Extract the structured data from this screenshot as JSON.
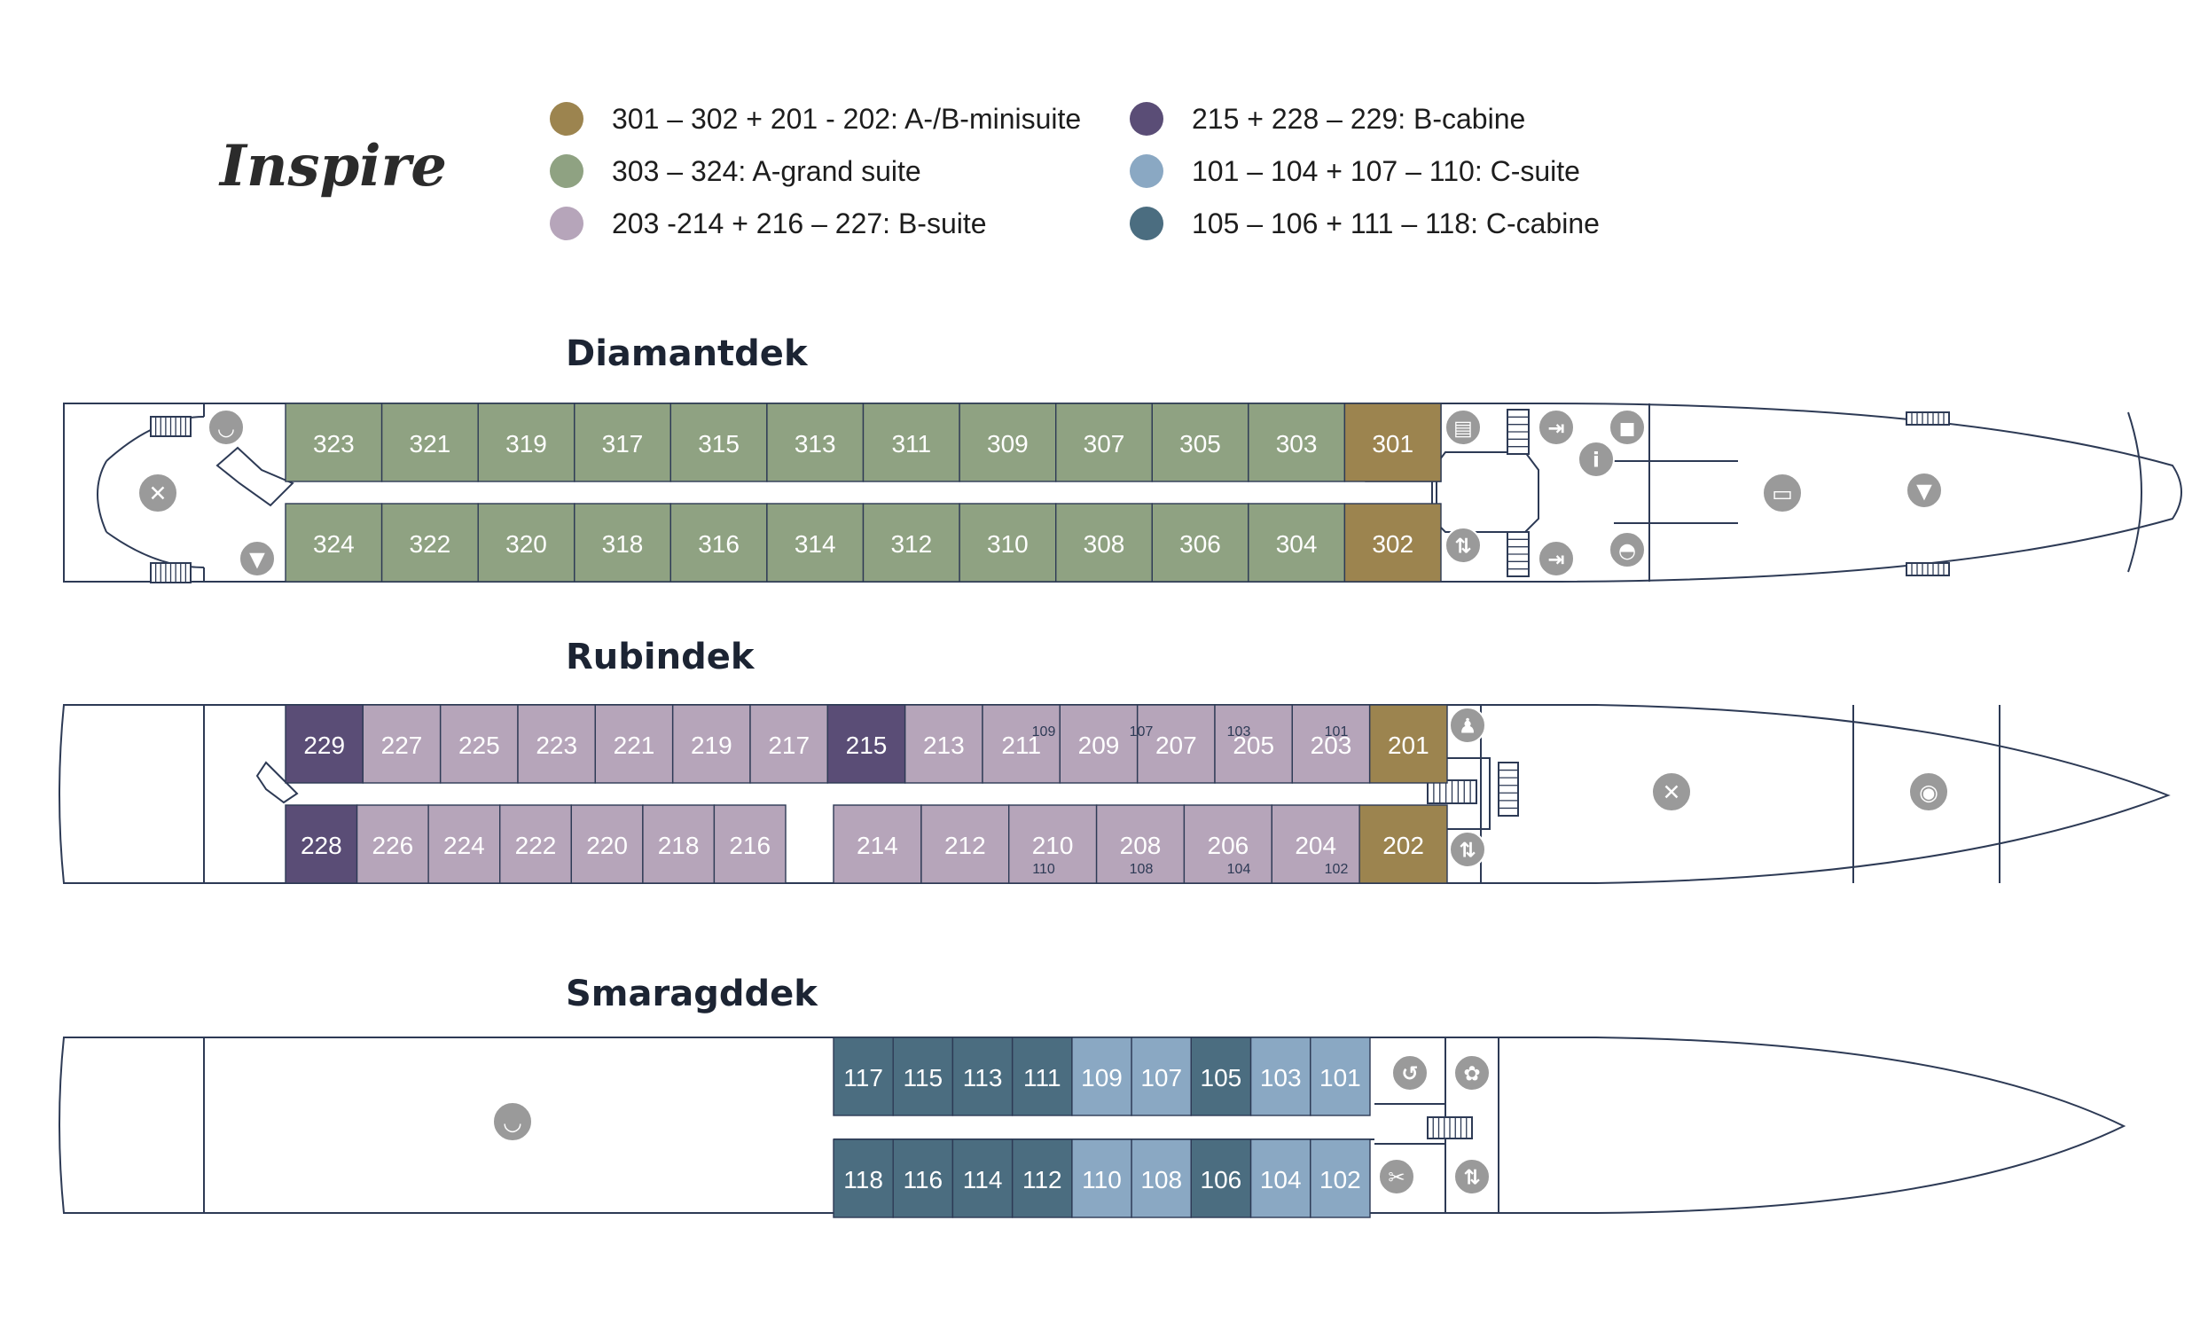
{
  "ship_name": "Inspire",
  "colors": {
    "minisuite": "#9c844f",
    "grand_suite": "#8fa282",
    "b_suite": "#b6a5ba",
    "b_cabine": "#5a4d76",
    "c_suite": "#8aa8c3",
    "c_cabine": "#4b6d80",
    "outline": "#2d3a55",
    "icon": "#9a9a9a"
  },
  "legend": [
    {
      "label": "301 – 302 + 201 - 202: A-/B-minisuite",
      "color": "#9c844f"
    },
    {
      "label": "303 – 324: A-grand suite",
      "color": "#8fa282"
    },
    {
      "label": "203 -214 + 216 – 227: B-suite",
      "color": "#b6a5ba"
    },
    {
      "label": "215 + 228 – 229: B-cabine",
      "color": "#5a4d76"
    },
    {
      "label": "101 – 104 + 107 – 110: C-suite",
      "color": "#8aa8c3"
    },
    {
      "label": "105 – 106 + 111 – 118: C-cabine",
      "color": "#4b6d80"
    }
  ],
  "decks": {
    "diamant": {
      "name": "Diamantdek",
      "top_row": [
        "323",
        "321",
        "319",
        "317",
        "315",
        "313",
        "311",
        "309",
        "307",
        "305",
        "303",
        "301"
      ],
      "bottom_row": [
        "324",
        "322",
        "320",
        "318",
        "316",
        "314",
        "312",
        "310",
        "308",
        "306",
        "304",
        "302"
      ]
    },
    "rubin": {
      "name": "Rubindek",
      "top_row": [
        "229",
        "227",
        "225",
        "223",
        "221",
        "219",
        "217",
        "215",
        "213",
        "211",
        "209",
        "207",
        "205",
        "203",
        "201"
      ],
      "bottom_row": [
        "228",
        "226",
        "224",
        "222",
        "220",
        "218",
        "216",
        "214",
        "212",
        "210",
        "208",
        "206",
        "204",
        "202"
      ],
      "stair_tags_top": [
        "109",
        "107",
        "103",
        "101"
      ],
      "stair_tags_bottom": [
        "110",
        "108",
        "104",
        "102"
      ]
    },
    "smaragd": {
      "name": "Smaragddek",
      "top_row": [
        "117",
        "115",
        "113",
        "111",
        "109",
        "107",
        "105",
        "103",
        "101"
      ],
      "bottom_row": [
        "118",
        "116",
        "114",
        "112",
        "110",
        "108",
        "106",
        "104",
        "102"
      ]
    }
  },
  "icons": {
    "diamant": [
      "restaurant-icon",
      "bowl-icon",
      "cocktail-icon",
      "library-icon",
      "exit-icon",
      "shop-icon",
      "info-icon",
      "elevator-icon",
      "exit-icon",
      "reception-bell-icon",
      "lounge-sofa-icon",
      "cocktail-icon"
    ],
    "rubin": [
      "restroom-icon",
      "elevator-icon",
      "restaurant-icon",
      "chef-icon"
    ],
    "smaragd": [
      "bowl-icon",
      "fitness-icon",
      "spa-lotus-icon",
      "salon-scissors-icon",
      "elevator-icon"
    ]
  }
}
